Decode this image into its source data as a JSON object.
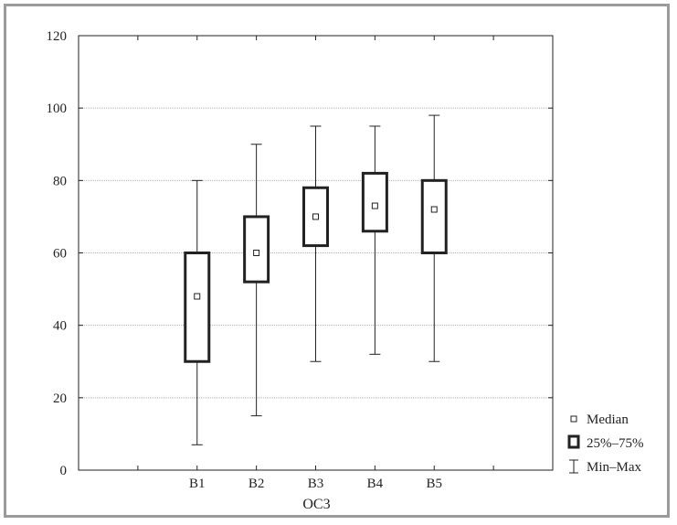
{
  "chart_data": {
    "type": "boxplot",
    "title": "",
    "xlabel": "OC3",
    "ylabel": "",
    "ylim": [
      0,
      120
    ],
    "yticks": [
      0,
      20,
      40,
      60,
      80,
      100,
      120
    ],
    "ytick_labels": [
      "0",
      "20",
      "40",
      "60",
      "80",
      "100",
      "120"
    ],
    "grid": true,
    "legend_position": "right-bottom",
    "categories": [
      "B1",
      "B2",
      "B3",
      "B4",
      "B5"
    ],
    "boxes": [
      {
        "label": "B1",
        "min": 7,
        "q1": 30,
        "median": 48,
        "q3": 60,
        "max": 80
      },
      {
        "label": "B2",
        "min": 15,
        "q1": 52,
        "median": 60,
        "q3": 70,
        "max": 90
      },
      {
        "label": "B3",
        "min": 30,
        "q1": 62,
        "median": 70,
        "q3": 78,
        "max": 95
      },
      {
        "label": "B4",
        "min": 32,
        "q1": 66,
        "median": 73,
        "q3": 82,
        "max": 95
      },
      {
        "label": "B5",
        "min": 30,
        "q1": 60,
        "median": 72,
        "q3": 80,
        "max": 98
      }
    ],
    "legend": {
      "median": "Median",
      "box": "25%–75%",
      "whisker": "Min–Max"
    },
    "colors": {
      "line": "#222222",
      "grid": "#b0b0b0",
      "frame": "#9a9a9a"
    }
  }
}
